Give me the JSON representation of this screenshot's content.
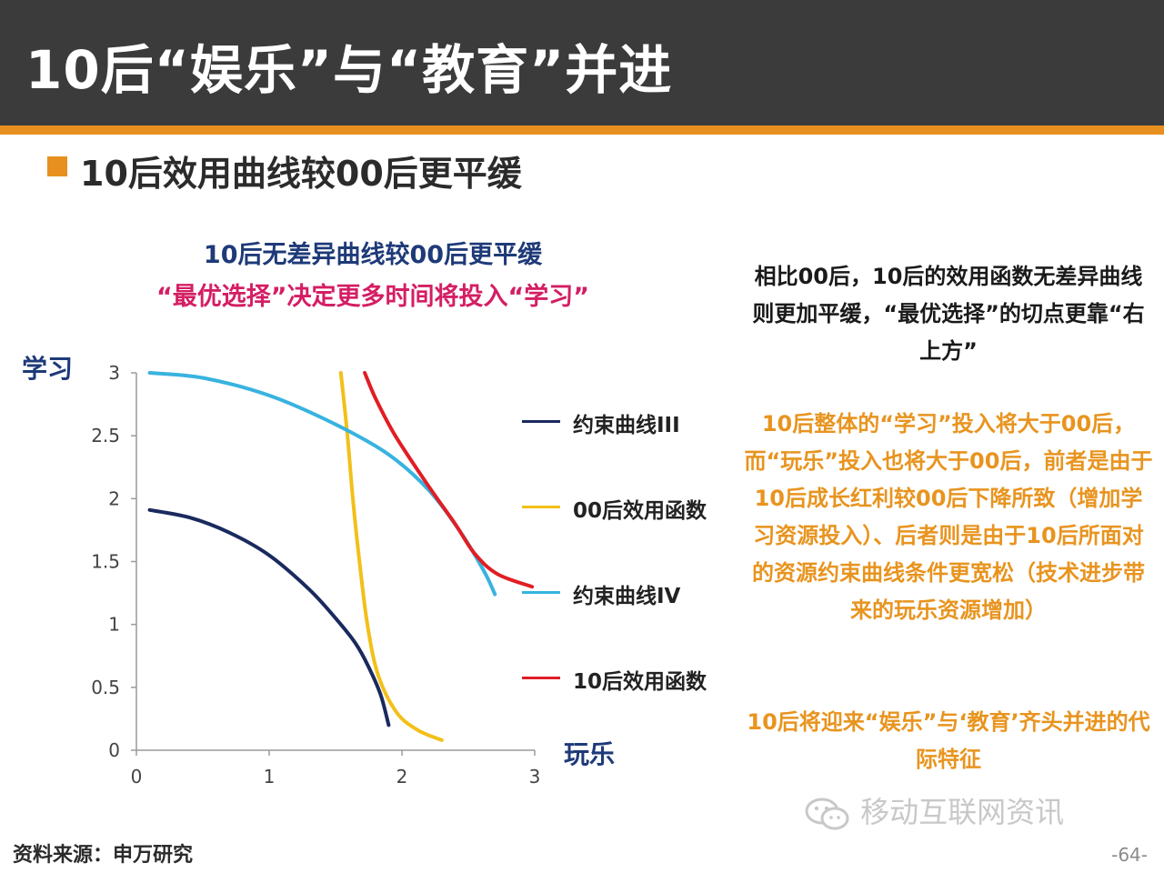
{
  "header": {
    "title": "10后“娱乐”与“教育”并进"
  },
  "subtitle": "10后效用曲线较00后更平缓",
  "chart_titles": {
    "line1": "10后无差异曲线较00后更平缓",
    "line2": "“最优选择”决定更多时间将投入“学习”"
  },
  "notes": {
    "summary": "相比00后，10后的效用函数无差异曲线则更加平缓，“最优选择”的切点更靠“右上方”",
    "detail": "10后整体的“学习”投入将大于00后，而“玩乐”投入也将大于00后，前者是由于10后成长红利较00后下降所致（增加学习资源投入）、后者则是由于10后所面对的资源约束曲线条件更宽松（技术进步带来的玩乐资源增加）",
    "conclusion": "10后将迎来“娱乐”与‘教育’齐头并进的代际特征"
  },
  "source": "资料来源：申万研究",
  "watermark": "移动互联网资讯",
  "page_number": "-64-",
  "chart_data": {
    "type": "line",
    "xlabel": "玩乐",
    "ylabel": "学习",
    "xlim": [
      0,
      3
    ],
    "ylim": [
      0,
      3
    ],
    "x_ticks": [
      "0",
      "1",
      "2",
      "3"
    ],
    "y_ticks": [
      "0",
      "0.5",
      "1",
      "1.5",
      "2",
      "2.5",
      "3"
    ],
    "grid": false,
    "legend_position": "right",
    "series": [
      {
        "name": "约束曲线III",
        "color": "#1a2a5e",
        "points": [
          [
            0.1,
            1.91
          ],
          [
            0.4,
            1.85
          ],
          [
            0.7,
            1.73
          ],
          [
            1.0,
            1.55
          ],
          [
            1.3,
            1.28
          ],
          [
            1.5,
            1.05
          ],
          [
            1.65,
            0.85
          ],
          [
            1.75,
            0.66
          ],
          [
            1.84,
            0.44
          ],
          [
            1.9,
            0.2
          ]
        ]
      },
      {
        "name": "00后效用函数",
        "color": "#f2c019",
        "points": [
          [
            1.54,
            3.0
          ],
          [
            1.59,
            2.5
          ],
          [
            1.63,
            2.0
          ],
          [
            1.68,
            1.5
          ],
          [
            1.74,
            1.0
          ],
          [
            1.82,
            0.6
          ],
          [
            1.96,
            0.3
          ],
          [
            2.12,
            0.16
          ],
          [
            2.3,
            0.08
          ]
        ]
      },
      {
        "name": "约束曲线IV",
        "color": "#38b3df",
        "points": [
          [
            0.1,
            3.0
          ],
          [
            0.5,
            2.96
          ],
          [
            1.0,
            2.82
          ],
          [
            1.5,
            2.59
          ],
          [
            1.9,
            2.35
          ],
          [
            2.2,
            2.07
          ],
          [
            2.45,
            1.72
          ],
          [
            2.62,
            1.42
          ],
          [
            2.7,
            1.24
          ]
        ]
      },
      {
        "name": "10后效用函数",
        "color": "#e01e24",
        "points": [
          [
            1.72,
            3.0
          ],
          [
            1.8,
            2.8
          ],
          [
            1.95,
            2.5
          ],
          [
            2.2,
            2.1
          ],
          [
            2.4,
            1.8
          ],
          [
            2.55,
            1.56
          ],
          [
            2.72,
            1.4
          ],
          [
            2.98,
            1.3
          ]
        ]
      }
    ]
  },
  "icons": {
    "watermark_icon": "wechat-icon"
  },
  "colors": {
    "accent": "#e8901f",
    "header_bg": "#3b3b3b"
  }
}
